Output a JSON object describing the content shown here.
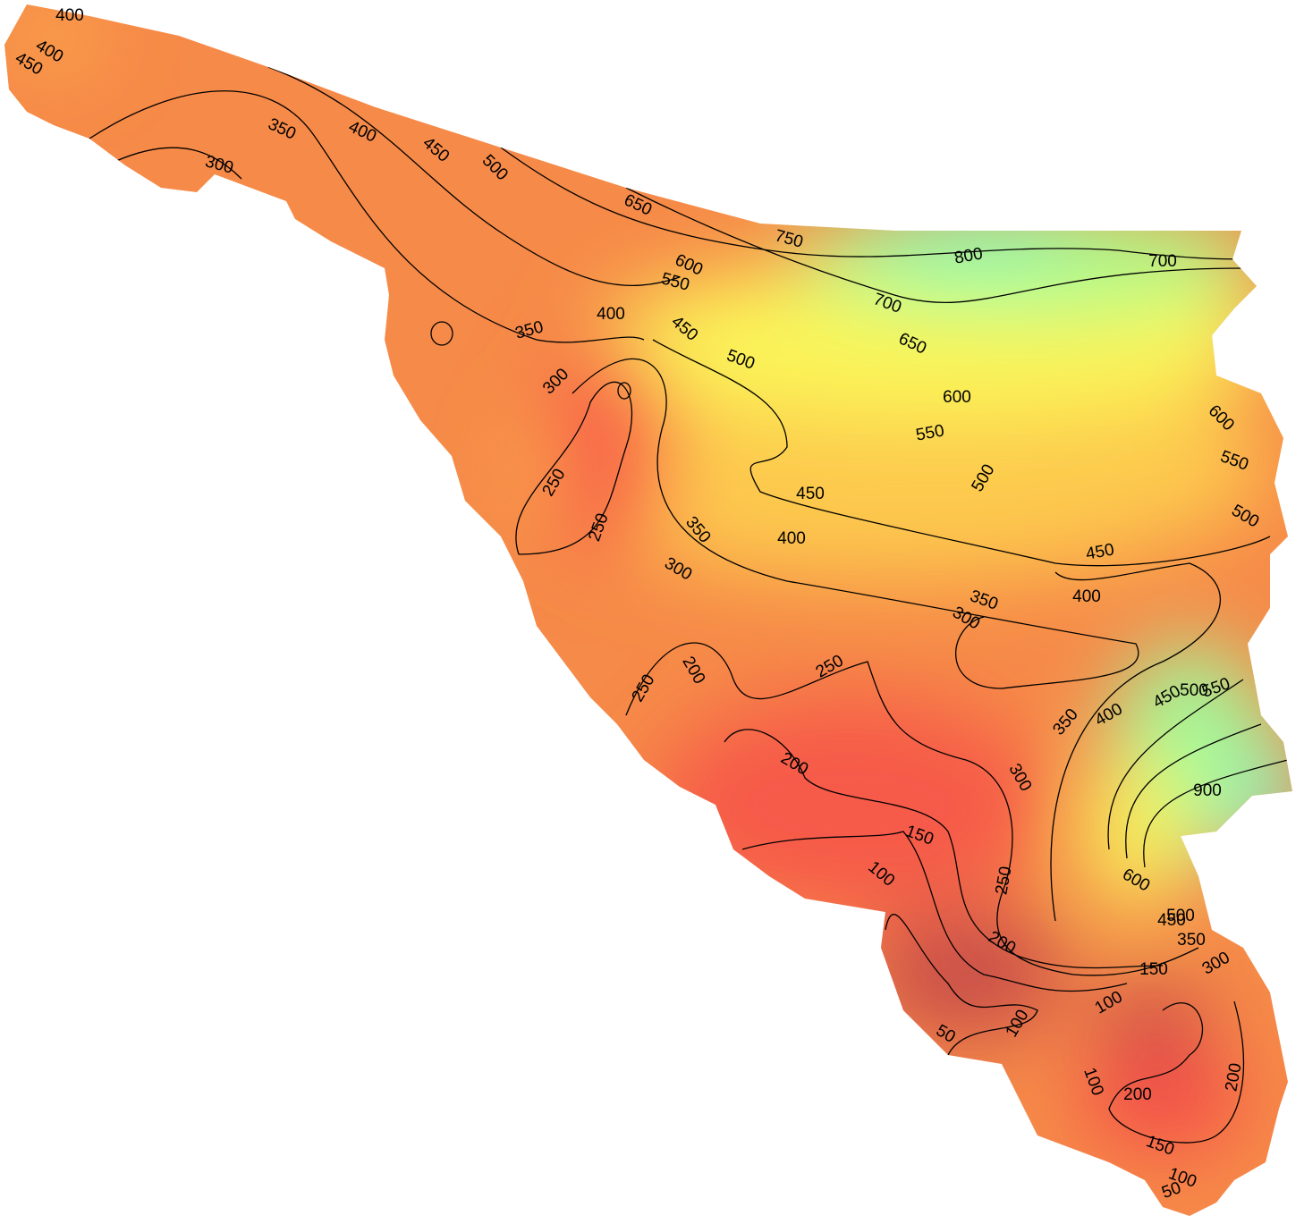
{
  "contour_labels": [
    "400",
    "400",
    "450",
    "350",
    "300",
    "400",
    "450",
    "500",
    "650",
    "750",
    "800",
    "700",
    "600",
    "550",
    "700",
    "650",
    "400",
    "450",
    "500",
    "350",
    "300",
    "600",
    "550",
    "600",
    "550",
    "500",
    "500",
    "450",
    "400",
    "450",
    "250",
    "250",
    "350",
    "300",
    "350",
    "400",
    "300",
    "250",
    "200",
    "250",
    "350",
    "400",
    "450",
    "500",
    "550",
    "300",
    "200",
    "900",
    "150",
    "100",
    "250",
    "600",
    "500",
    "450",
    "350",
    "300",
    "200",
    "150",
    "100",
    "100",
    "50",
    "100",
    "200",
    "200",
    "150",
    "100",
    "50"
  ]
}
